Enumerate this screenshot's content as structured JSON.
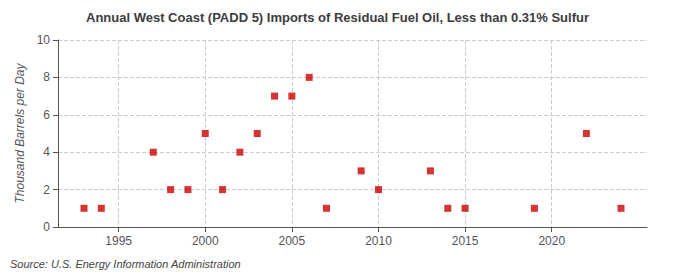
{
  "chart_data": {
    "type": "scatter",
    "title": "Annual West Coast (PADD 5) Imports of Residual Fuel Oil, Less than 0.31% Sulfur",
    "ylabel": "Thousand Barrels per Day",
    "source": "Source: U.S. Energy Information Administration",
    "x": [
      1993,
      1994,
      1997,
      1998,
      1999,
      2000,
      2001,
      2002,
      2003,
      2004,
      2005,
      2006,
      2007,
      2009,
      2010,
      2013,
      2014,
      2015,
      2019,
      2022,
      2024
    ],
    "values": [
      1,
      1,
      4,
      2,
      2,
      5,
      2,
      4,
      5,
      7,
      7,
      8,
      1,
      3,
      2,
      3,
      1,
      1,
      1,
      5,
      1
    ],
    "color": "#cc0000",
    "marker": "square",
    "xlim": [
      1991.5,
      2025.5
    ],
    "ylim": [
      0,
      10
    ],
    "xticks": [
      1995,
      2000,
      2005,
      2010,
      2015,
      2020
    ],
    "yticks": [
      0,
      2,
      4,
      6,
      8,
      10
    ],
    "grid": true
  }
}
